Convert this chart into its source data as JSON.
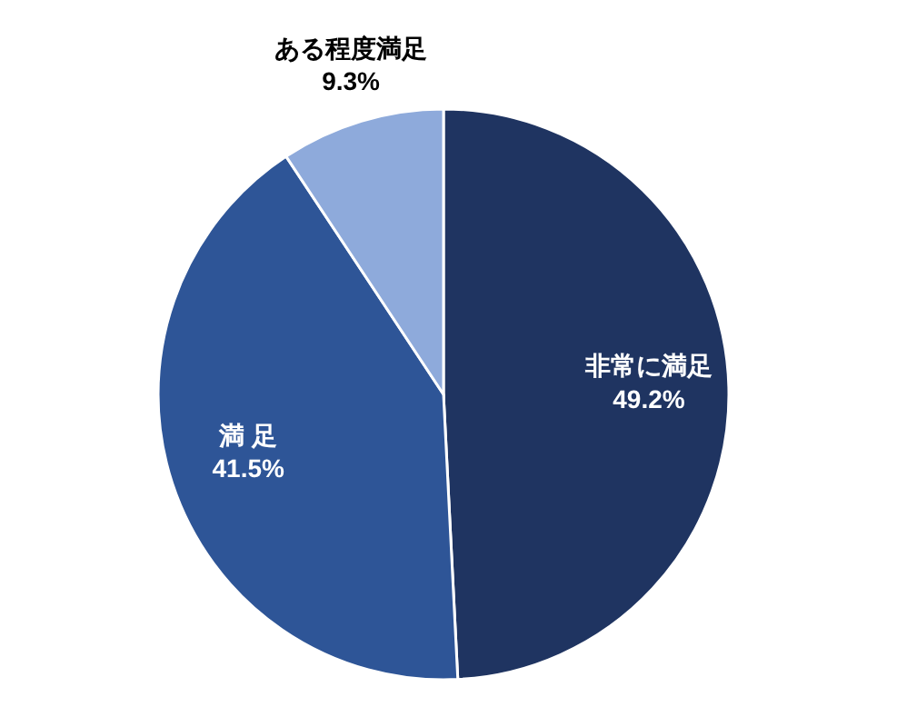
{
  "chart_data": {
    "type": "pie",
    "categories": [
      "非常に満足",
      "満 足",
      "ある程度満足"
    ],
    "values": [
      49.2,
      41.5,
      9.3
    ],
    "colors": [
      "#1f3461",
      "#2e5597",
      "#8eaadb"
    ],
    "value_labels": [
      "49.2%",
      "41.5%",
      "9.3%"
    ]
  }
}
